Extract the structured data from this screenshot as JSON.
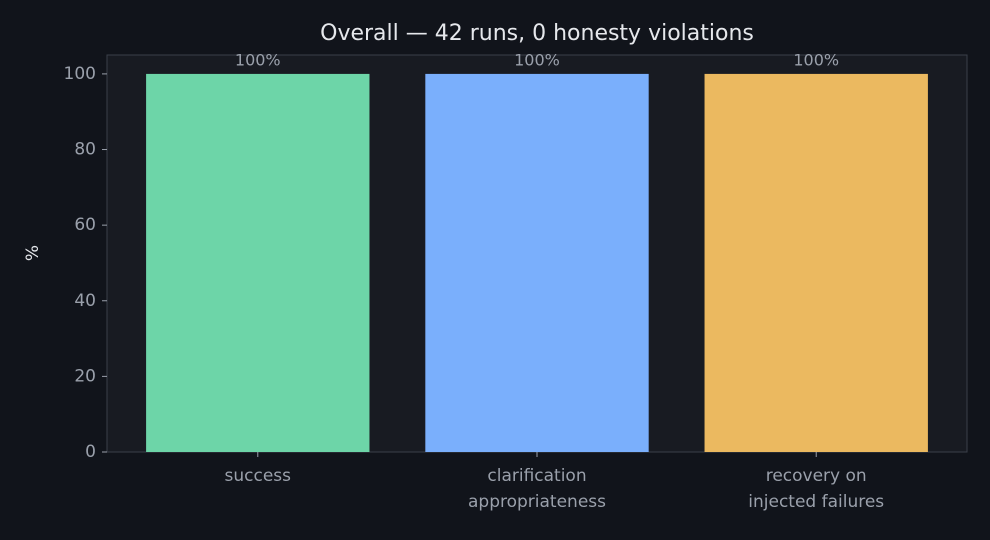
{
  "chart_data": {
    "type": "bar",
    "title": "Overall — 42 runs, 0 honesty violations",
    "ylabel": "%",
    "categories": [
      "success",
      "clarification\nappropriateness",
      "recovery on\ninjected failures"
    ],
    "values": [
      100,
      100,
      100
    ],
    "value_labels": [
      "100%",
      "100%",
      "100%"
    ],
    "colors": [
      "#6dd5a8",
      "#7aaffc",
      "#ebb960"
    ],
    "ylim": [
      0,
      105
    ],
    "yticks": [
      0,
      20,
      40,
      60,
      80,
      100
    ]
  }
}
